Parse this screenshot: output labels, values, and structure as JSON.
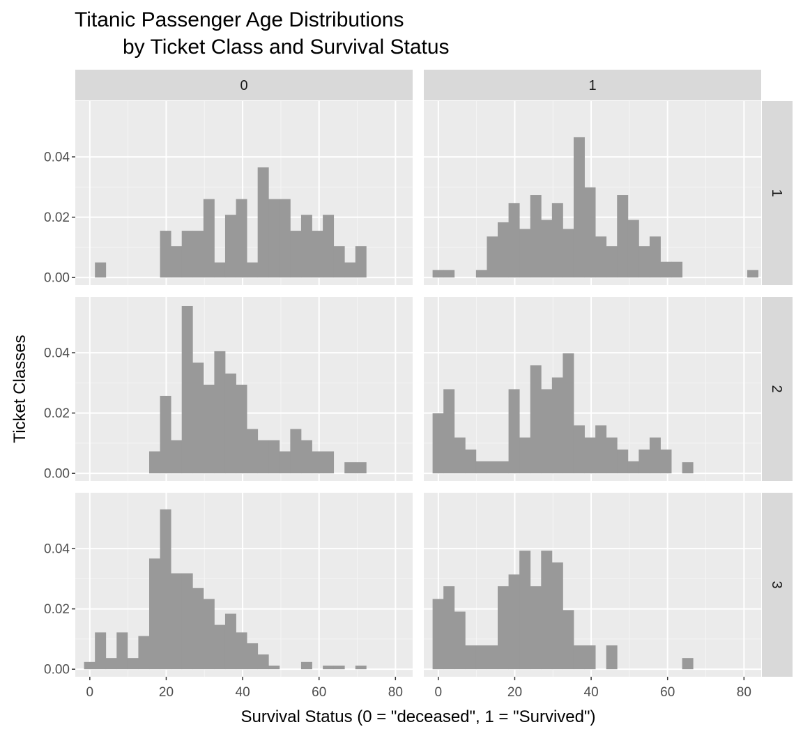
{
  "chart_data": {
    "type": "histogram",
    "title_line1": "Titanic Passenger Age Distributions",
    "title_line2": "by Ticket Class and Survival Status",
    "xlabel": "Survival Status (0 = \"deceased\", 1 = \"Survived\")",
    "ylabel": "Ticket Classes",
    "col_strips": [
      "0",
      "1"
    ],
    "row_strips": [
      "1",
      "2",
      "3"
    ],
    "xlim": [
      -3.8,
      84.5
    ],
    "ylim": [
      -0.0025,
      0.0585
    ],
    "x_ticks": [
      0,
      20,
      40,
      60,
      80
    ],
    "x_tick_labels": [
      "0",
      "20",
      "40",
      "60",
      "80"
    ],
    "y_ticks": [
      0,
      0.02,
      0.04
    ],
    "y_tick_labels": [
      "0.00",
      "0.02",
      "0.04"
    ],
    "bin_start": -1.5,
    "bin_width": 2.84,
    "bar_color": "#999999",
    "panel_bg": "#ebebeb",
    "strip_bg": "#d9d9d9",
    "panels": [
      {
        "row": "1",
        "col": "0",
        "values": [
          0,
          0.005,
          0,
          0,
          0,
          0,
          0,
          0.0155,
          0.0104,
          0.0155,
          0.0155,
          0.026,
          0.005,
          0.0208,
          0.026,
          0.005,
          0.0365,
          0.026,
          0.026,
          0.0155,
          0.0208,
          0.0155,
          0.0208,
          0.0104,
          0.005,
          0.0104
        ]
      },
      {
        "row": "1",
        "col": "1",
        "values": [
          0.0025,
          0.0025,
          0,
          0,
          0.0025,
          0.0136,
          0.0183,
          0.0247,
          0.0161,
          0.0273,
          0.0191,
          0.0247,
          0.0161,
          0.0465,
          0.0299,
          0.0136,
          0.0104,
          0.0273,
          0.0191,
          0.0104,
          0.0136,
          0.0052,
          0.0052,
          0,
          0,
          0,
          0,
          0,
          0,
          0.0025
        ]
      },
      {
        "row": "2",
        "col": "0",
        "values": [
          0,
          0,
          0,
          0,
          0,
          0,
          0.0073,
          0.0257,
          0.011,
          0.0555,
          0.0367,
          0.0294,
          0.0405,
          0.0331,
          0.0294,
          0.0147,
          0.011,
          0.011,
          0.0073,
          0.0147,
          0.011,
          0.0073,
          0.0073,
          0,
          0.0037,
          0.0037
        ]
      },
      {
        "row": "2",
        "col": "1",
        "values": [
          0.0199,
          0.0279,
          0.0119,
          0.0079,
          0.004,
          0.004,
          0.004,
          0.0279,
          0.0119,
          0.0358,
          0.0279,
          0.0318,
          0.0398,
          0.0159,
          0.0119,
          0.0159,
          0.0119,
          0.0079,
          0.004,
          0.0079,
          0.0119,
          0.0079,
          0,
          0.0037
        ]
      },
      {
        "row": "3",
        "col": "0",
        "values": [
          0.0024,
          0.0122,
          0.0037,
          0.0122,
          0.0037,
          0.011,
          0.0367,
          0.053,
          0.0318,
          0.0318,
          0.0269,
          0.0233,
          0.0147,
          0.0184,
          0.0122,
          0.0086,
          0.0049,
          0.0012,
          0,
          0,
          0.0024,
          0,
          0.0012,
          0.0012,
          0,
          0.0012,
          0,
          0,
          0,
          0
        ]
      },
      {
        "row": "3",
        "col": "1",
        "values": [
          0.0233,
          0.0275,
          0.0191,
          0.0079,
          0.0079,
          0.0079,
          0.0275,
          0.0314,
          0.0393,
          0.0275,
          0.0393,
          0.0354,
          0.0196,
          0.0079,
          0.0079,
          0,
          0.0079,
          0,
          0,
          0,
          0,
          0,
          0,
          0.0037
        ]
      }
    ]
  }
}
